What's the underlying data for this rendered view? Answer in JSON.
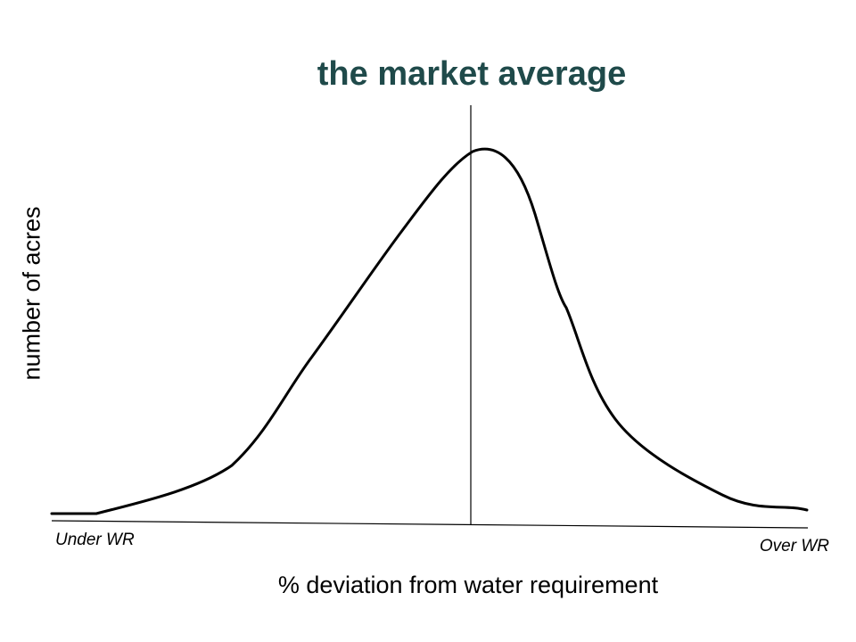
{
  "title": "the market average",
  "ylabel": "number of acres",
  "xlabel": "% deviation from water requirement",
  "left_label": "Under WR",
  "right_label": "Over WR",
  "colors": {
    "title": "#1f4a4a",
    "lines": "#000000"
  }
}
